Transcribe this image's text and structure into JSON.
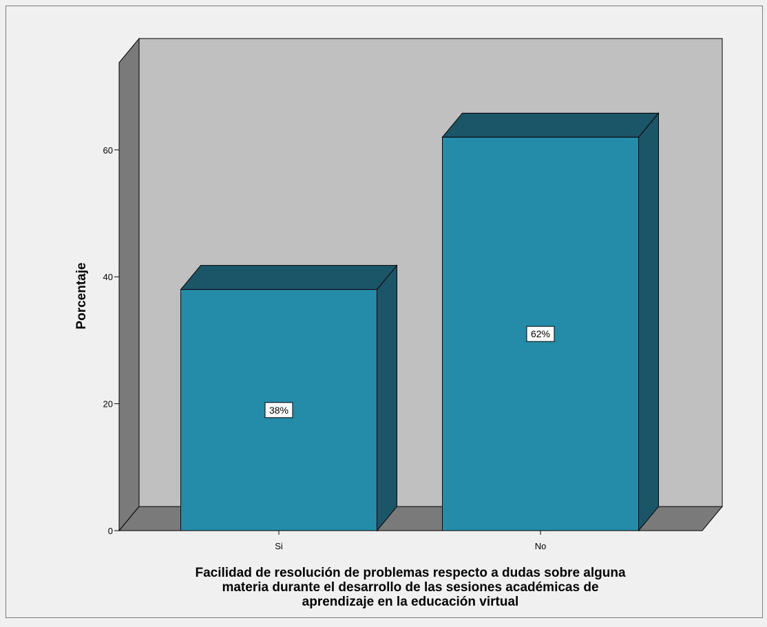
{
  "chart_data": {
    "type": "bar",
    "style": "3d",
    "categories": [
      "Si",
      "No"
    ],
    "values": [
      38,
      62
    ],
    "data_labels": [
      "38%",
      "62%"
    ],
    "ylabel": "Porcentaje",
    "xlabel_lines": [
      "Facilidad de resolución de problemas respecto a dudas sobre alguna",
      "materia durante el desarrollo de las sesiones académicas de",
      "aprendizaje en la educación virtual"
    ],
    "y_ticks": [
      0,
      20,
      40,
      60
    ],
    "ylim": [
      0,
      77
    ],
    "grid": false,
    "legend": "none",
    "colors": {
      "bar_front": "#248ba9",
      "bar_top": "#1a5568",
      "bar_side": "#1a5568",
      "back_wall": "#c0c0c0",
      "left_wall": "#7a7a7a",
      "floor": "#7a7a7a",
      "background": "#f0f0f0"
    }
  }
}
